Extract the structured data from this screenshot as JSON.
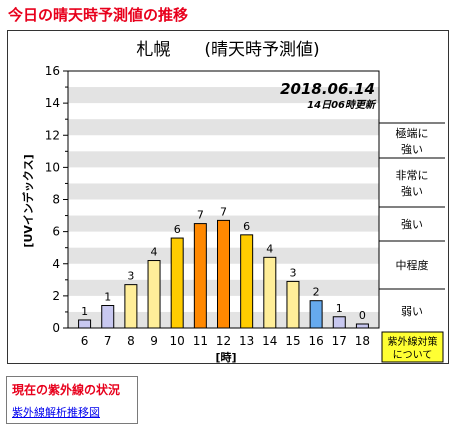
{
  "page_title": "今日の晴天時予測値の推移",
  "chart_data": {
    "type": "bar",
    "title": "札幌　　(晴天時予測値)",
    "date": "2018.06.14",
    "update_note": "14日06時更新",
    "xlabel": "[時]",
    "ylabel": "[UVインデックス]",
    "categories": [
      "6",
      "7",
      "8",
      "9",
      "10",
      "11",
      "12",
      "13",
      "14",
      "15",
      "16",
      "17",
      "18"
    ],
    "values": [
      1,
      1,
      3,
      4,
      6,
      7,
      7,
      6,
      4,
      3,
      2,
      1,
      0
    ],
    "display_heights": [
      0.5,
      1.4,
      2.7,
      4.2,
      5.6,
      6.5,
      6.7,
      5.8,
      4.4,
      2.9,
      1.7,
      0.7,
      0.25
    ],
    "ylim": [
      0,
      16
    ],
    "ytick_labels": [
      "0",
      "2",
      "4",
      "6",
      "8",
      "10",
      "12",
      "14",
      "16"
    ],
    "bar_colors": [
      "#c8c8f0",
      "#c8c8f0",
      "#ffee99",
      "#ffee99",
      "#ffcc00",
      "#ff8800",
      "#ff8800",
      "#ffcc00",
      "#ffee99",
      "#ffee99",
      "#66aaee",
      "#c8c8f0",
      "#c8c8f0"
    ],
    "grid": "horizontal bands",
    "legend_levels": [
      "極端に強い",
      "非常に強い",
      "強い",
      "中程度",
      "弱い"
    ],
    "legend_button": "紫外線対策について"
  },
  "status": {
    "title": "現在の紫外線の状況",
    "link": "紫外線解析推移図"
  }
}
